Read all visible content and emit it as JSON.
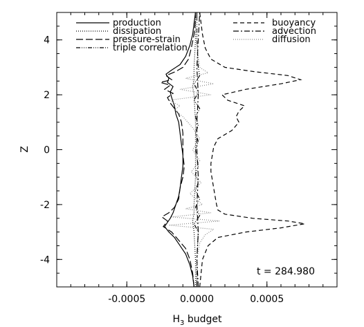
{
  "chart_data": {
    "type": "line",
    "xlabel": "H",
    "xlabel_sub": "3",
    "xlabel_suffix": " budget",
    "ylabel": "Z",
    "xlim": [
      -0.001,
      0.001
    ],
    "ylim": [
      -5,
      5
    ],
    "x_ticks": [
      -0.0005,
      0.0,
      0.0005
    ],
    "x_tick_labels": [
      "-0.0005",
      "0.0000",
      "0.0005"
    ],
    "y_ticks": [
      -4,
      -2,
      0,
      2,
      4
    ],
    "y_tick_labels": [
      "-4",
      "-2",
      "0",
      "2",
      "4"
    ],
    "annotation": "t = 284.980",
    "grid": false,
    "legend_left": [
      "production",
      "dissipation",
      "pressure-strain",
      "triple correlation"
    ],
    "legend_right": [
      "buoyancy",
      "advection",
      "diffusion"
    ],
    "series": [
      {
        "name": "production",
        "dash": "solid",
        "color": "#000000",
        "z": [
          -5,
          -4.6,
          -4.2,
          -3.8,
          -3.5,
          -3.2,
          -3.0,
          -2.8,
          -2.65,
          -2.5,
          -2.3,
          -2.0,
          -1.7,
          -1.4,
          -1.0,
          -0.6,
          -0.2,
          0.2,
          0.6,
          1.0,
          1.3,
          1.6,
          1.9,
          2.1,
          2.3,
          2.45,
          2.6,
          2.75,
          2.9,
          3.1,
          3.4,
          3.8,
          4.2,
          4.6,
          5.0
        ],
        "values": [
          -2e-05,
          -3e-05,
          -5e-05,
          -8e-05,
          -0.00012,
          -0.00016,
          -0.0002,
          -0.00023,
          -0.00021,
          -0.00019,
          -0.00017,
          -0.00015,
          -0.00013,
          -0.00012,
          -0.00011,
          -0.0001,
          -0.0001,
          -0.00011,
          -0.00012,
          -0.00013,
          -0.00015,
          -0.00016,
          -0.00018,
          -0.00019,
          -0.00017,
          -0.00021,
          -0.0002,
          -0.00022,
          -0.00018,
          -0.00012,
          -8e-05,
          -5e-05,
          -3e-05,
          -2e-05,
          -1e-05
        ]
      },
      {
        "name": "dissipation",
        "dash": "1,2",
        "color": "#000000",
        "z": [
          -5,
          -4,
          -3,
          -2.6,
          -2.3,
          -2,
          -1,
          0,
          1,
          2,
          2.3,
          2.6,
          3,
          4,
          5
        ],
        "values": [
          -1e-05,
          -1e-05,
          -2e-05,
          -3e-05,
          -2e-05,
          -2e-05,
          -1e-05,
          -1e-05,
          -1e-05,
          -2e-05,
          -3e-05,
          -2e-05,
          -2e-05,
          -1e-05,
          -1e-05
        ]
      },
      {
        "name": "pressure-strain",
        "dash": "10,4",
        "color": "#000000",
        "z": [
          -5,
          -4.5,
          -4,
          -3.6,
          -3.3,
          -3.0,
          -2.8,
          -2.6,
          -2.45,
          -2.3,
          -2.1,
          -1.8,
          -1.4,
          -1.0,
          -0.6,
          -0.2,
          0.2,
          0.6,
          1.0,
          1.3,
          1.5,
          1.7,
          1.9,
          2.05,
          2.2,
          2.35,
          2.45,
          2.55,
          2.7,
          2.85,
          3.0,
          3.3,
          3.7,
          4.2,
          4.7,
          5.0
        ],
        "values": [
          -2e-05,
          -3e-05,
          -5e-05,
          -8e-05,
          -0.00013,
          -0.00018,
          -0.00024,
          -0.00021,
          -0.00025,
          -0.0002,
          -0.00016,
          -0.00013,
          -0.00012,
          -0.0001,
          -9e-05,
          -0.0001,
          -0.0001,
          -0.0001,
          -0.00011,
          -0.00013,
          -0.00016,
          -0.00019,
          -0.00021,
          -0.00017,
          -0.00023,
          -0.00019,
          -0.00026,
          -0.00018,
          -0.00022,
          -0.00015,
          -0.0001,
          -6e-05,
          -4e-05,
          -2e-05,
          -1e-05,
          -1e-05
        ]
      },
      {
        "name": "triple correlation",
        "dash": "6,2,1,2,1,2,1,2",
        "color": "#000000",
        "z": [
          -5,
          -4,
          -3,
          -2.7,
          -2.4,
          -2.1,
          -1.8,
          -1.5,
          -1.2,
          -0.9,
          -0.6,
          -0.3,
          0,
          0.3,
          0.6,
          0.9,
          1.2,
          1.5,
          1.8,
          2.1,
          2.4,
          2.7,
          3,
          4,
          5
        ],
        "values": [
          0.0,
          0.0,
          1e-05,
          -2e-05,
          2e-05,
          -1e-05,
          2e-05,
          -1e-05,
          1e-05,
          -1e-05,
          1e-05,
          0.0,
          -1e-05,
          1e-05,
          -1e-05,
          1e-05,
          -1e-05,
          2e-05,
          -2e-05,
          1e-05,
          -2e-05,
          2e-05,
          1e-05,
          0.0,
          0.0
        ]
      },
      {
        "name": "buoyancy",
        "dash": "6,4",
        "color": "#000000",
        "z": [
          -5,
          -4.5,
          -4,
          -3.5,
          -3.2,
          -3.0,
          -2.85,
          -2.7,
          -2.6,
          -2.5,
          -2.35,
          -2.2,
          -2.0,
          -1.7,
          -1.4,
          -1.1,
          -0.8,
          -0.5,
          -0.2,
          0.1,
          0.4,
          0.7,
          1.0,
          1.2,
          1.4,
          1.6,
          1.8,
          2.0,
          2.2,
          2.4,
          2.55,
          2.7,
          2.85,
          3.0,
          3.3,
          3.7,
          4.2,
          4.6,
          5.0
        ],
        "values": [
          2e-05,
          3e-05,
          4e-05,
          8e-05,
          0.00015,
          0.00035,
          0.0006,
          0.00077,
          0.00065,
          0.0004,
          0.0002,
          0.00015,
          0.00014,
          0.00013,
          0.00012,
          0.00011,
          0.0001,
          0.0001,
          0.00011,
          0.00012,
          0.00015,
          0.00025,
          0.0003,
          0.00028,
          0.0003,
          0.00034,
          0.00022,
          0.00018,
          0.00035,
          0.0006,
          0.00074,
          0.00065,
          0.0004,
          0.0002,
          0.0001,
          6e-05,
          4e-05,
          3e-05,
          2e-05
        ]
      },
      {
        "name": "advection",
        "dash": "8,3,2,3",
        "color": "#000000",
        "z": [
          -5,
          -4,
          -3,
          -2,
          -1,
          0,
          1,
          2,
          3,
          4,
          5
        ],
        "values": [
          1e-05,
          0.0,
          1e-05,
          0.0,
          1e-05,
          0.0,
          0.0,
          1e-05,
          0.0,
          1e-05,
          2e-05
        ]
      },
      {
        "name": "diffusion",
        "dash": "1,2",
        "color": "#888888",
        "z": [
          -5,
          -4,
          -3.4,
          -3.1,
          -2.9,
          -2.75,
          -2.6,
          -2.45,
          -2.3,
          -2.15,
          -2.0,
          -1.6,
          -1.2,
          -0.8,
          -0.4,
          0,
          0.4,
          0.8,
          1.2,
          1.45,
          1.6,
          1.8,
          2.0,
          2.2,
          2.4,
          2.6,
          2.8,
          3.0,
          3.4,
          4.0,
          5.0
        ],
        "values": [
          0.0,
          0.0,
          2e-05,
          6e-05,
          0.00012,
          -0.0002,
          0.00016,
          -0.00018,
          0.0001,
          -8e-05,
          4e-05,
          -5e-05,
          3e-05,
          -4e-05,
          2e-05,
          -3e-05,
          2e-05,
          -3e-05,
          -0.0001,
          -0.00016,
          -0.00012,
          -0.0002,
          0.0001,
          -0.00012,
          0.00012,
          -8e-05,
          8e-05,
          2e-05,
          1e-05,
          0.0,
          0.0
        ]
      }
    ]
  }
}
